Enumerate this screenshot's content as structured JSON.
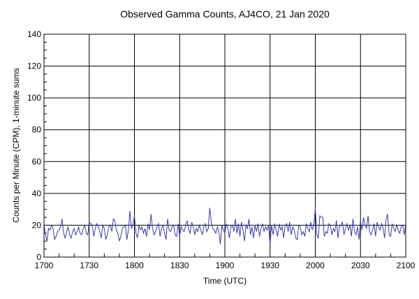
{
  "chart_data": {
    "type": "line",
    "title": "Observed Gamma Counts, AJ4CO, 21 Jan 2020",
    "xlabel": "Time (UTC)",
    "ylabel": "Counts per Minute (CPM), 1-minute sums",
    "x_start": "1700",
    "x_step_minutes": 1,
    "xlim": [
      "1700",
      "2100"
    ],
    "ylim": [
      0,
      140
    ],
    "x_ticks": [
      "1700",
      "1730",
      "1800",
      "1830",
      "1900",
      "1930",
      "2000",
      "2030",
      "2100"
    ],
    "y_ticks": [
      "0",
      "20",
      "40",
      "60",
      "80",
      "100",
      "120",
      "140"
    ],
    "grid": true,
    "line_color": "#3a3aa8",
    "values": [
      20,
      14,
      10,
      18,
      17,
      20,
      18,
      11,
      13,
      16,
      17,
      19,
      24,
      15,
      12,
      16,
      19,
      14,
      12,
      16,
      18,
      14,
      16,
      19,
      15,
      14,
      18,
      20,
      15,
      14,
      22,
      21,
      20,
      13,
      18,
      21,
      19,
      16,
      12,
      20,
      18,
      11,
      14,
      19,
      20,
      16,
      24,
      23,
      17,
      15,
      10,
      13,
      18,
      19,
      20,
      11,
      17,
      29,
      18,
      20,
      26,
      15,
      12,
      20,
      17,
      19,
      15,
      18,
      13,
      21,
      17,
      27,
      18,
      14,
      16,
      19,
      21,
      13,
      18,
      20,
      15,
      11,
      24,
      17,
      16,
      19,
      20,
      14,
      13,
      21,
      13,
      19,
      17,
      16,
      20,
      23,
      17,
      15,
      22,
      19,
      14,
      18,
      16,
      20,
      17,
      14,
      19,
      21,
      16,
      18,
      31,
      22,
      18,
      17,
      15,
      19,
      16,
      8,
      20,
      17,
      15,
      21,
      18,
      12,
      19,
      20,
      16,
      24,
      15,
      21,
      13,
      22,
      17,
      10,
      20,
      18,
      24,
      14,
      19,
      12,
      20,
      16,
      21,
      13,
      18,
      21,
      16,
      19,
      17,
      20,
      8,
      20,
      14,
      21,
      17,
      13,
      21,
      17,
      19,
      12,
      20,
      21,
      16,
      22,
      14,
      19,
      17,
      12,
      11,
      20,
      19,
      14,
      16,
      13,
      21,
      18,
      16,
      22,
      17,
      20,
      31,
      14,
      12,
      26,
      25,
      25,
      13,
      16,
      15,
      21,
      20,
      14,
      18,
      16,
      23,
      12,
      19,
      20,
      22,
      14,
      18,
      21,
      17,
      20,
      13,
      24,
      16,
      14,
      19,
      11,
      23,
      17,
      25,
      20,
      18,
      26,
      16,
      14,
      17,
      21,
      13,
      22,
      19,
      17,
      21,
      18,
      12,
      24,
      27,
      14,
      13,
      21,
      18,
      16,
      20,
      17,
      15,
      19,
      20,
      14,
      21
    ]
  }
}
